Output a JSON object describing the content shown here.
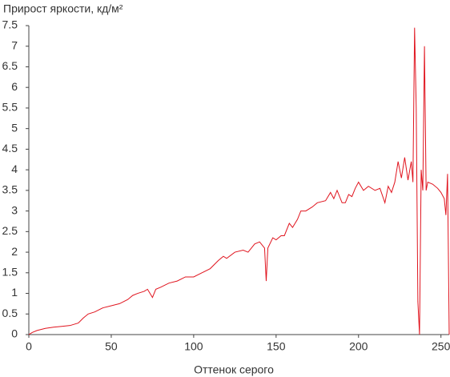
{
  "chart_data": {
    "type": "line",
    "title": "Прирост яркости, кд/м²",
    "x_label": "Оттенок серого",
    "xlim": [
      0,
      255
    ],
    "xticks": [
      0,
      50,
      100,
      150,
      200,
      250
    ],
    "ylim": [
      0,
      7.5
    ],
    "yticks": [
      0,
      0.5,
      1,
      1.5,
      2,
      2.5,
      3,
      3.5,
      4,
      4.5,
      5,
      5.5,
      6,
      6.5,
      7,
      7.5
    ],
    "x": [
      0,
      2,
      5,
      10,
      15,
      20,
      25,
      30,
      33,
      36,
      40,
      45,
      50,
      55,
      60,
      63,
      66,
      70,
      72,
      75,
      77,
      80,
      85,
      90,
      95,
      100,
      105,
      110,
      115,
      118,
      120,
      125,
      130,
      133,
      137,
      140,
      143,
      144,
      145,
      148,
      150,
      153,
      155,
      158,
      160,
      163,
      165,
      168,
      172,
      175,
      180,
      183,
      185,
      187,
      190,
      192,
      194,
      196,
      198,
      200,
      203,
      206,
      210,
      213,
      216,
      218,
      220,
      222,
      224,
      226,
      228,
      230,
      232,
      233,
      234,
      235,
      236,
      237,
      238,
      239,
      240,
      241,
      242,
      245,
      248,
      250,
      252,
      253,
      254,
      255
    ],
    "series": [
      {
        "color": "#e0141e",
        "values": [
          0,
          0.05,
          0.1,
          0.15,
          0.18,
          0.2,
          0.22,
          0.28,
          0.4,
          0.5,
          0.55,
          0.65,
          0.7,
          0.75,
          0.85,
          0.95,
          1.0,
          1.05,
          1.1,
          0.9,
          1.1,
          1.15,
          1.25,
          1.3,
          1.4,
          1.4,
          1.5,
          1.6,
          1.8,
          1.9,
          1.85,
          2.0,
          2.05,
          2.0,
          2.2,
          2.25,
          2.1,
          1.3,
          2.1,
          2.35,
          2.3,
          2.4,
          2.4,
          2.7,
          2.6,
          2.8,
          3.0,
          3.0,
          3.1,
          3.2,
          3.25,
          3.45,
          3.3,
          3.5,
          3.2,
          3.2,
          3.4,
          3.35,
          3.55,
          3.7,
          3.5,
          3.6,
          3.5,
          3.55,
          3.2,
          3.6,
          3.45,
          3.7,
          4.2,
          3.8,
          4.3,
          3.75,
          4.2,
          3.7,
          7.45,
          5.5,
          0.8,
          0,
          4.0,
          3.5,
          7.0,
          3.5,
          3.7,
          3.65,
          3.55,
          3.45,
          3.3,
          2.9,
          3.9,
          0
        ]
      }
    ]
  }
}
